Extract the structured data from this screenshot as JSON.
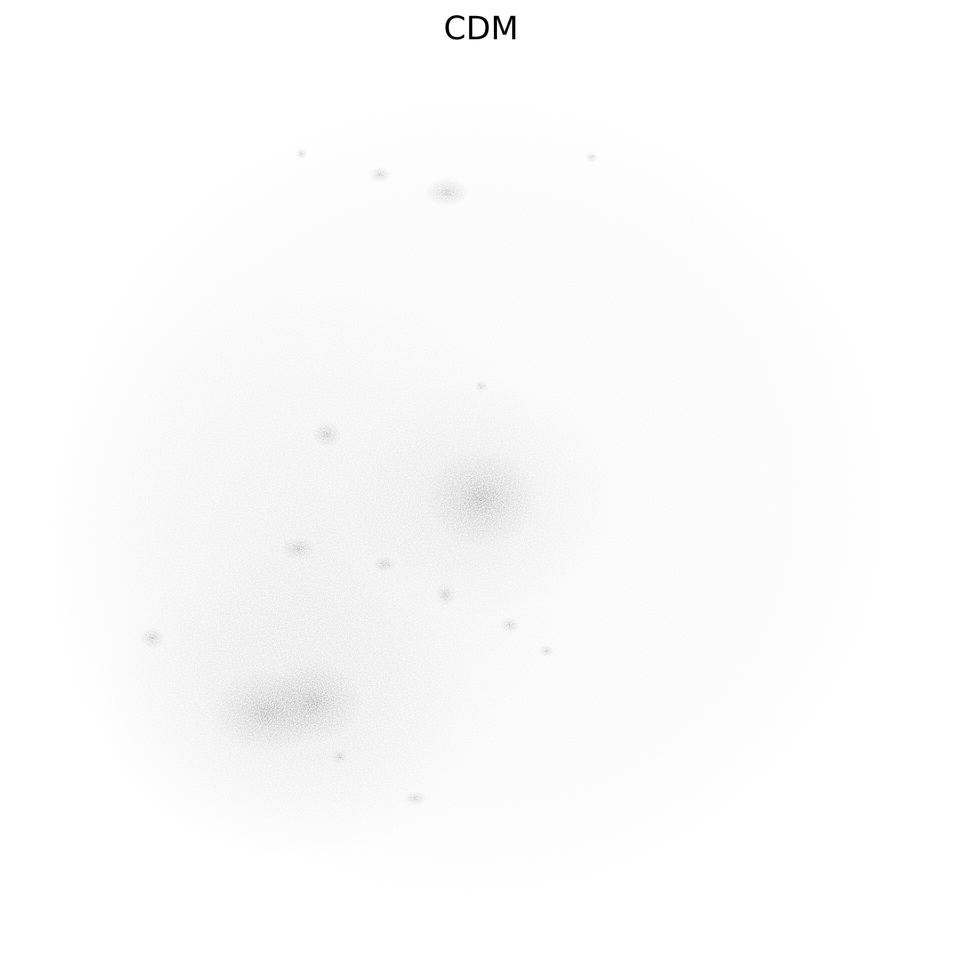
{
  "figure": {
    "title": "CDM",
    "colormap": "greys",
    "background_color": "#ffffff",
    "particle_color": "#000000"
  }
}
